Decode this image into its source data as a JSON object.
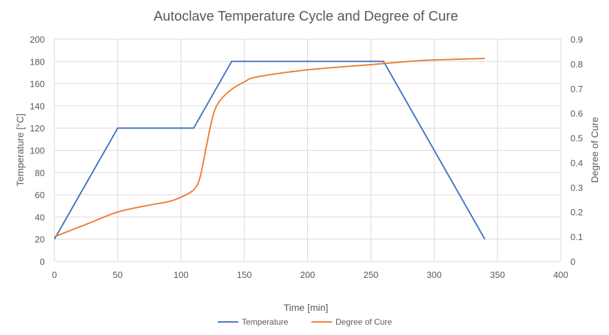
{
  "chart_data": {
    "type": "line",
    "title": "Autoclave Temperature Cycle and Degree of Cure",
    "xlabel": "Time [min]",
    "ylabel": "Temperature [°C]",
    "y2label": "Degree of Cure",
    "xlim": [
      0,
      400
    ],
    "ylim": [
      0,
      200
    ],
    "y2lim": [
      0,
      0.9
    ],
    "xticks": [
      0,
      50,
      100,
      150,
      200,
      250,
      300,
      350,
      400
    ],
    "yticks": [
      0,
      20,
      40,
      60,
      80,
      100,
      120,
      140,
      160,
      180,
      200
    ],
    "y2ticks": [
      "0",
      "0.1",
      "0.2",
      "0.3",
      "0.4",
      "0.5",
      "0.6",
      "0.7",
      "0.8",
      "0.9"
    ],
    "grid": true,
    "legend": "bottom",
    "series": [
      {
        "name": "Temperature",
        "axis": "left",
        "color": "#4472C4",
        "x": [
          0,
          50,
          110,
          140,
          260,
          340
        ],
        "y": [
          20,
          120,
          120,
          180,
          180,
          20
        ]
      },
      {
        "name": "Degree of Cure",
        "axis": "right",
        "color": "#ED7D31",
        "x": [
          0,
          25,
          50,
          75,
          90,
          100,
          110,
          115,
          120,
          125,
          130,
          140,
          150,
          160,
          200,
          250,
          280,
          300,
          340
        ],
        "y": [
          0.1,
          0.15,
          0.2,
          0.228,
          0.242,
          0.26,
          0.29,
          0.34,
          0.465,
          0.585,
          0.646,
          0.697,
          0.727,
          0.747,
          0.776,
          0.797,
          0.81,
          0.816,
          0.822
        ]
      }
    ]
  }
}
